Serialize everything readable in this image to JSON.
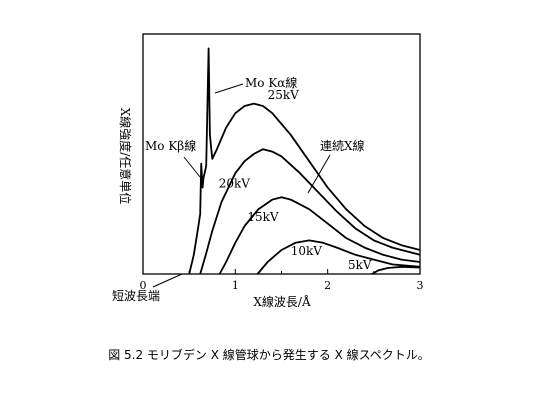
{
  "chart_data": {
    "type": "line",
    "title": "",
    "xlabel": "X線波長/Å",
    "ylabel": "X線強度/任意単位",
    "xlim": [
      0,
      3
    ],
    "ylim": [
      0,
      1
    ],
    "grid": false,
    "xticks": [
      "0",
      "1",
      "2",
      "3"
    ],
    "series": [
      {
        "name": "25kV",
        "points": [
          [
            0.5,
            0.0
          ],
          [
            0.55,
            0.08
          ],
          [
            0.6,
            0.2
          ],
          [
            0.65,
            0.29
          ],
          [
            0.7,
            0.38
          ],
          [
            0.75,
            0.46
          ],
          [
            0.8,
            0.52
          ],
          [
            0.9,
            0.61
          ],
          [
            1.0,
            0.67
          ],
          [
            1.1,
            0.7
          ],
          [
            1.2,
            0.71
          ],
          [
            1.3,
            0.7
          ],
          [
            1.4,
            0.67
          ],
          [
            1.6,
            0.58
          ],
          [
            1.8,
            0.47
          ],
          [
            2.0,
            0.36
          ],
          [
            2.2,
            0.27
          ],
          [
            2.4,
            0.2
          ],
          [
            2.6,
            0.15
          ],
          [
            2.8,
            0.12
          ],
          [
            3.0,
            0.1
          ]
        ]
      },
      {
        "name": "20kV",
        "points": [
          [
            0.62,
            0.0
          ],
          [
            0.68,
            0.08
          ],
          [
            0.75,
            0.18
          ],
          [
            0.85,
            0.3
          ],
          [
            1.0,
            0.42
          ],
          [
            1.1,
            0.47
          ],
          [
            1.2,
            0.5
          ],
          [
            1.3,
            0.52
          ],
          [
            1.4,
            0.51
          ],
          [
            1.5,
            0.49
          ],
          [
            1.7,
            0.42
          ],
          [
            1.9,
            0.34
          ],
          [
            2.1,
            0.26
          ],
          [
            2.3,
            0.19
          ],
          [
            2.5,
            0.14
          ],
          [
            2.7,
            0.11
          ],
          [
            3.0,
            0.08
          ]
        ]
      },
      {
        "name": "15kV",
        "points": [
          [
            0.83,
            0.0
          ],
          [
            0.9,
            0.05
          ],
          [
            1.0,
            0.13
          ],
          [
            1.1,
            0.2
          ],
          [
            1.25,
            0.27
          ],
          [
            1.4,
            0.31
          ],
          [
            1.5,
            0.32
          ],
          [
            1.6,
            0.31
          ],
          [
            1.8,
            0.27
          ],
          [
            2.0,
            0.21
          ],
          [
            2.2,
            0.15
          ],
          [
            2.4,
            0.11
          ],
          [
            2.6,
            0.08
          ],
          [
            2.8,
            0.06
          ],
          [
            3.0,
            0.05
          ]
        ]
      },
      {
        "name": "10kV",
        "points": [
          [
            1.24,
            0.0
          ],
          [
            1.35,
            0.05
          ],
          [
            1.5,
            0.1
          ],
          [
            1.65,
            0.13
          ],
          [
            1.8,
            0.14
          ],
          [
            1.95,
            0.13
          ],
          [
            2.1,
            0.11
          ],
          [
            2.3,
            0.08
          ],
          [
            2.5,
            0.06
          ],
          [
            2.7,
            0.04
          ],
          [
            3.0,
            0.03
          ]
        ]
      },
      {
        "name": "5kV",
        "points": [
          [
            2.48,
            0.0
          ],
          [
            2.55,
            0.015
          ],
          [
            2.65,
            0.025
          ],
          [
            2.8,
            0.03
          ],
          [
            2.95,
            0.028
          ],
          [
            3.0,
            0.027
          ]
        ]
      }
    ],
    "peaks": [
      {
        "label": "Mo Kβ線",
        "x": 0.63,
        "y": 0.46
      },
      {
        "label": "Mo Kα線",
        "x": 0.71,
        "y": 0.94
      }
    ],
    "annotations": {
      "continuum": "連続X線",
      "swl": "短波長端"
    }
  },
  "caption": "図 5.2 モリブデン X 線管球から発生する X 線スペクトル。"
}
